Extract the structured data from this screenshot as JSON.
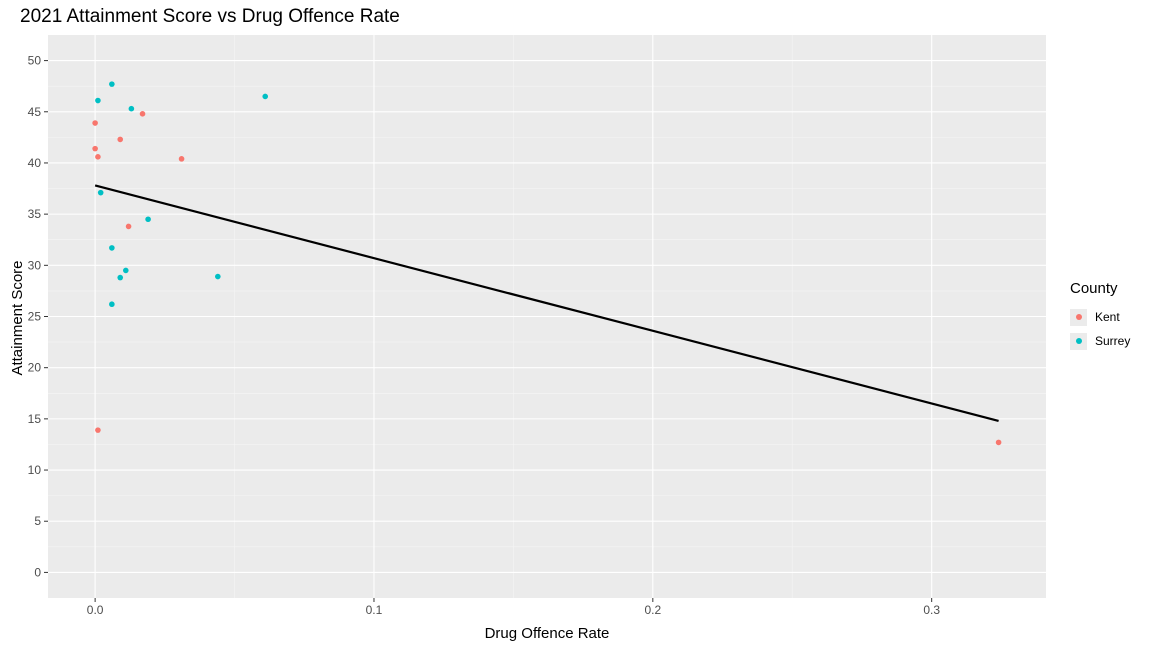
{
  "chart_data": {
    "type": "scatter",
    "title": "2021 Attainment Score vs Drug Offence Rate",
    "xlabel": "Drug Offence Rate",
    "ylabel": "Attainment Score",
    "xlim": [
      -0.0169,
      0.341
    ],
    "ylim": [
      -2.5,
      52.5
    ],
    "xticks": [
      0.0,
      0.1,
      0.2,
      0.3
    ],
    "xtick_labels": [
      "0.0",
      "0.1",
      "0.2",
      "0.3"
    ],
    "yticks": [
      0,
      5,
      10,
      15,
      20,
      25,
      30,
      35,
      40,
      45,
      50
    ],
    "ytick_labels": [
      "0",
      "5",
      "10",
      "15",
      "20",
      "25",
      "30",
      "35",
      "40",
      "45",
      "50"
    ],
    "grid": true,
    "legend": {
      "title": "County",
      "position": "right"
    },
    "series": [
      {
        "name": "Kent",
        "color": "#F8766D",
        "points": [
          {
            "x": 0.0,
            "y": 43.9
          },
          {
            "x": 0.0,
            "y": 41.4
          },
          {
            "x": 0.001,
            "y": 40.6
          },
          {
            "x": 0.009,
            "y": 42.3
          },
          {
            "x": 0.017,
            "y": 44.8
          },
          {
            "x": 0.031,
            "y": 40.4
          },
          {
            "x": 0.012,
            "y": 33.8
          },
          {
            "x": 0.001,
            "y": 13.9
          },
          {
            "x": 0.324,
            "y": 12.7
          }
        ]
      },
      {
        "name": "Surrey",
        "color": "#00BFC4",
        "points": [
          {
            "x": 0.006,
            "y": 47.7
          },
          {
            "x": 0.001,
            "y": 46.1
          },
          {
            "x": 0.013,
            "y": 45.3
          },
          {
            "x": 0.061,
            "y": 46.5
          },
          {
            "x": 0.002,
            "y": 37.1
          },
          {
            "x": 0.019,
            "y": 34.5
          },
          {
            "x": 0.006,
            "y": 31.7
          },
          {
            "x": 0.011,
            "y": 29.5
          },
          {
            "x": 0.009,
            "y": 28.8
          },
          {
            "x": 0.044,
            "y": 28.9
          },
          {
            "x": 0.006,
            "y": 26.2
          }
        ]
      }
    ],
    "trend_line": {
      "x": [
        0.0,
        0.324
      ],
      "y": [
        37.8,
        14.8
      ],
      "color": "#000000"
    }
  }
}
